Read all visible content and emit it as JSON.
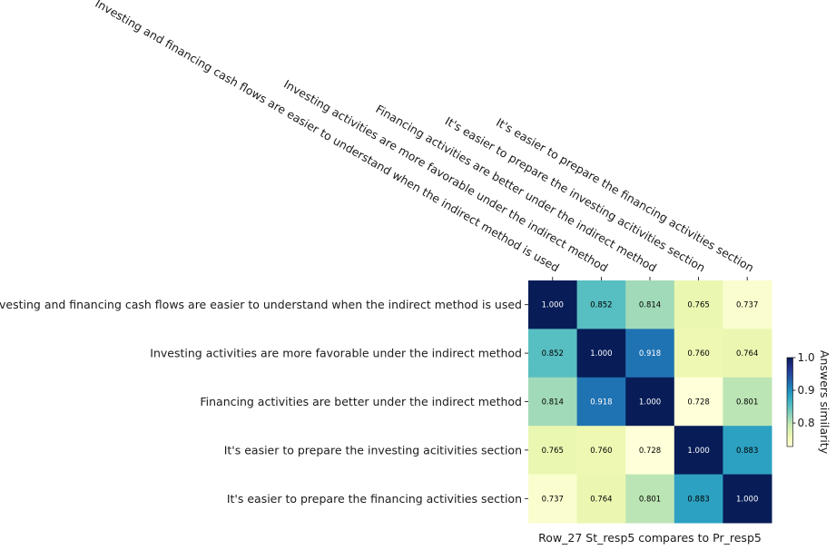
{
  "chart_data": {
    "type": "heatmap",
    "rows": [
      "Investing and financing cash flows are easier to understand when the indirect method is used",
      "Investing activities are more favorable under the indirect method",
      "Financing activities are better under the indirect method",
      "It's easier to prepare the investing acitivities section",
      "It's easier to prepare the financing activities section"
    ],
    "columns": [
      "Investing and financing cash flows are easier to understand when the indirect method is used",
      "Investing activities are more favorable under the indirect method",
      "Financing activities are better under the indirect method",
      "It's easier to prepare the investing acitivities section",
      "It's easier to prepare the financing activities section"
    ],
    "values": [
      [
        1.0,
        0.852,
        0.814,
        0.765,
        0.737
      ],
      [
        0.852,
        1.0,
        0.918,
        0.76,
        0.764
      ],
      [
        0.814,
        0.918,
        1.0,
        0.728,
        0.801
      ],
      [
        0.765,
        0.76,
        0.728,
        1.0,
        0.883
      ],
      [
        0.737,
        0.764,
        0.801,
        0.883,
        1.0
      ]
    ],
    "value_format": "3 decimals",
    "xlabel": "Row_27 St_resp5 compares to Pr_resp5",
    "colorbar": {
      "label": "Answers similarity",
      "range": [
        0.728,
        1.0
      ],
      "ticks": [
        "0.8",
        "0.9",
        "1.0"
      ],
      "colormap": "YlGnBu"
    }
  }
}
